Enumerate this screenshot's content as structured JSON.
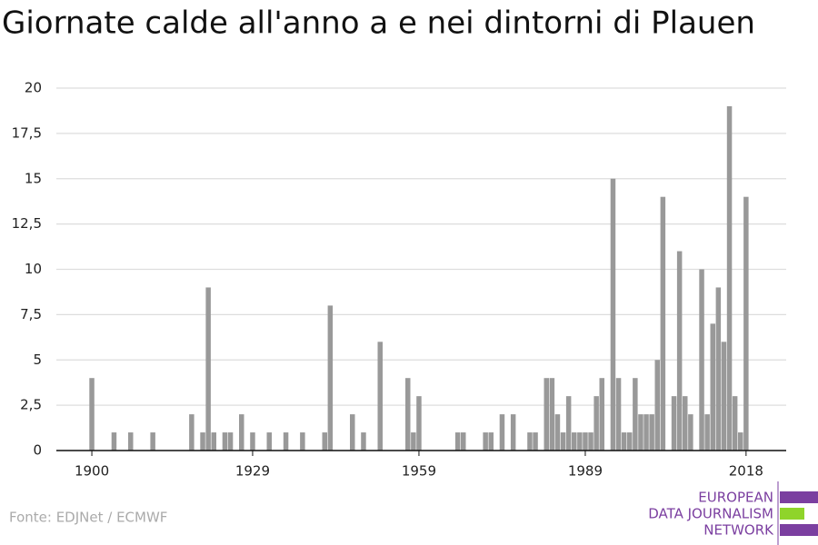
{
  "chart_data": {
    "type": "bar",
    "title": "Giornate calde all'anno a e nei dintorni di Plauen",
    "categories": [
      "1900",
      null,
      null,
      null,
      null,
      null,
      null,
      null,
      null,
      null,
      null,
      null,
      null,
      null,
      null,
      null,
      null,
      null,
      null,
      null,
      null,
      null,
      null,
      null,
      null,
      null,
      null,
      null,
      null,
      "1929",
      null,
      null,
      null,
      null,
      null,
      null,
      null,
      null,
      null,
      null,
      null,
      null,
      null,
      null,
      null,
      null,
      null,
      null,
      null,
      null,
      null,
      null,
      null,
      null,
      null,
      null,
      null,
      null,
      null,
      "1959",
      null,
      null,
      null,
      null,
      null,
      null,
      null,
      null,
      null,
      null,
      null,
      null,
      null,
      null,
      null,
      null,
      null,
      null,
      null,
      null,
      null,
      null,
      null,
      null,
      null,
      null,
      null,
      null,
      null,
      "1989",
      null,
      null,
      null,
      null,
      null,
      null,
      null,
      null,
      null,
      null,
      null,
      null,
      null,
      null,
      null,
      null,
      null,
      null,
      null,
      null,
      null,
      null,
      null,
      null,
      null,
      null,
      null,
      null,
      "2018"
    ],
    "values": [
      4,
      0,
      0,
      0,
      1,
      0,
      0,
      1,
      0,
      0,
      0,
      1,
      0,
      0,
      0,
      0,
      0,
      0,
      2,
      0,
      1,
      9,
      1,
      0,
      1,
      1,
      0,
      2,
      0,
      1,
      0,
      0,
      1,
      0,
      0,
      1,
      0,
      0,
      1,
      0,
      0,
      0,
      1,
      8,
      0,
      0,
      0,
      2,
      0,
      1,
      0,
      0,
      6,
      0,
      0,
      0,
      0,
      4,
      1,
      3,
      0,
      0,
      0,
      0,
      0,
      0,
      1,
      1,
      0,
      0,
      0,
      1,
      1,
      0,
      2,
      0,
      2,
      0,
      0,
      1,
      1,
      0,
      4,
      4,
      2,
      1,
      3,
      1,
      1,
      1,
      1,
      3,
      4,
      0,
      15,
      4,
      1,
      1,
      4,
      2,
      2,
      2,
      5,
      14,
      0,
      3,
      11,
      3,
      2,
      0,
      10,
      2,
      7,
      9,
      6,
      19,
      3,
      1,
      14
    ],
    "color": "#999999",
    "ylim": [
      0,
      20
    ],
    "yticks": [
      0,
      {
        "value": 2.5,
        "label": "2,5"
      },
      5,
      {
        "value": 7.5,
        "label": "7,5"
      },
      10,
      {
        "value": 12.5,
        "label": "12,5"
      },
      15,
      {
        "value": 17.5,
        "label": "17,5"
      },
      20
    ],
    "grid": true,
    "source": "Fonte: EDJNet / ECMWF",
    "logo": [
      "EUROPEAN",
      "DATA JOURNALISM",
      "NETWORK"
    ]
  }
}
